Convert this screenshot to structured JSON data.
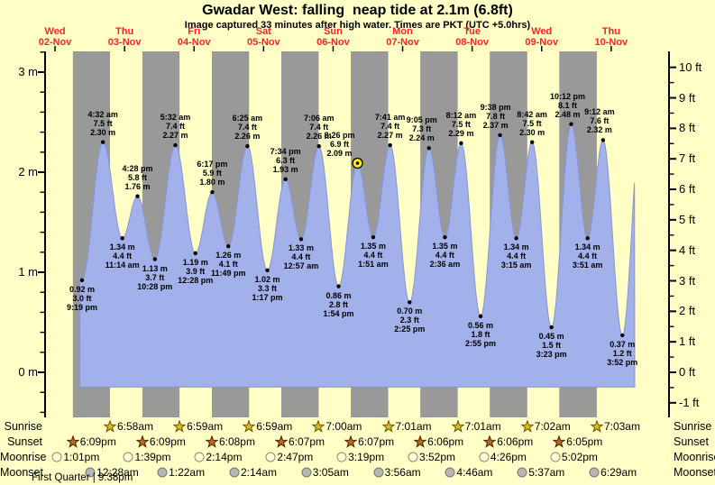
{
  "title": "Gwadar West: falling  neap tide at 2.1m (6.8ft)",
  "subtitle": "Image captured 33 minutes after high water. Times are PKT (UTC +5.0hrs)",
  "colors": {
    "background_day": "#ffffc6",
    "night_band": "#999999",
    "water_fill": "#a2b1ea",
    "water_edge": "#8794d8",
    "date_red": "#ff2222",
    "current_marker": "#ffe81e",
    "sunrise_star": "#d9bc2a",
    "sunrise_star_edge": "#6b5a00",
    "sunset_star": "#bc6a1e",
    "sunset_star_edge": "#4a2a00",
    "moonrise_fill": "#ffffd8",
    "moonrise_edge": "#8a8a6a",
    "moonset_fill": "#b6b6b6",
    "moonset_edge": "#777777"
  },
  "chart_data": {
    "type": "area",
    "title": "Gwadar West: falling  neap tide at 2.1m (6.8ft)",
    "subtitle": "Image captured 33 minutes after high water. Times are PKT (UTC +5.0hrs)",
    "y_axis_left_labels": [
      "3 m",
      "2 m",
      "1 m",
      "0 m"
    ],
    "y_axis_right_labels": [
      "10 ft",
      "9 ft",
      "8 ft",
      "7 ft",
      "6 ft",
      "5 ft",
      "4 ft",
      "3 ft",
      "2 ft",
      "1 ft",
      "0 ft",
      "-1 ft"
    ],
    "y_axis_left_unit": "m",
    "y_axis_right_unit": "ft",
    "ylim_m": [
      -0.46,
      3.2
    ],
    "grid": "day-night-bands",
    "days": [
      {
        "weekday": "Wed",
        "date": "02-Nov"
      },
      {
        "weekday": "Thu",
        "date": "03-Nov"
      },
      {
        "weekday": "Fri",
        "date": "04-Nov"
      },
      {
        "weekday": "Sat",
        "date": "05-Nov"
      },
      {
        "weekday": "Sun",
        "date": "06-Nov"
      },
      {
        "weekday": "Mon",
        "date": "07-Nov"
      },
      {
        "weekday": "Tue",
        "date": "08-Nov"
      },
      {
        "weekday": "Wed",
        "date": "09-Nov"
      },
      {
        "weekday": "Thu",
        "date": "10-Nov"
      }
    ],
    "tide_events": [
      {
        "day": 0,
        "time": "9:19 pm",
        "height_m": "0.92",
        "height_ft": "3.0",
        "type": "low"
      },
      {
        "day": 1,
        "time": "4:32 am",
        "height_m": "2.30",
        "height_ft": "7.5",
        "type": "high"
      },
      {
        "day": 1,
        "time": "11:14 am",
        "height_m": "1.34",
        "height_ft": "4.4",
        "type": "low"
      },
      {
        "day": 1,
        "time": "4:28 pm",
        "height_m": "1.76",
        "height_ft": "5.8",
        "type": "high"
      },
      {
        "day": 1,
        "time": "10:28 pm",
        "height_m": "1.13",
        "height_ft": "3.7",
        "type": "low"
      },
      {
        "day": 2,
        "time": "5:32 am",
        "height_m": "2.27",
        "height_ft": "7.4",
        "type": "high"
      },
      {
        "day": 2,
        "time": "12:28 pm",
        "height_m": "1.19",
        "height_ft": "3.9",
        "type": "low"
      },
      {
        "day": 2,
        "time": "6:17 pm",
        "height_m": "1.80",
        "height_ft": "5.9",
        "type": "high"
      },
      {
        "day": 2,
        "time": "11:49 pm",
        "height_m": "1.26",
        "height_ft": "4.1",
        "type": "low"
      },
      {
        "day": 3,
        "time": "6:25 am",
        "height_m": "2.26",
        "height_ft": "7.4",
        "type": "high"
      },
      {
        "day": 3,
        "time": "1:17 pm",
        "height_m": "1.02",
        "height_ft": "3.3",
        "type": "low"
      },
      {
        "day": 3,
        "time": "7:34 pm",
        "height_m": "1.93",
        "height_ft": "6.3",
        "type": "high"
      },
      {
        "day": 4,
        "time": "12:57 am",
        "height_m": "1.33",
        "height_ft": "4.4",
        "type": "low"
      },
      {
        "day": 4,
        "time": "7:06 am",
        "height_m": "2.26",
        "height_ft": "7.4",
        "type": "high"
      },
      {
        "day": 4,
        "time": "1:54 pm",
        "height_m": "0.86",
        "height_ft": "2.8",
        "type": "low"
      },
      {
        "day": 4,
        "time": "8:26 pm",
        "height_m": "2.09",
        "height_ft": "6.9",
        "type": "high",
        "current": true,
        "label_dx": -20
      },
      {
        "day": 5,
        "time": "1:51 am",
        "height_m": "1.35",
        "height_ft": "4.4",
        "type": "low"
      },
      {
        "day": 5,
        "time": "7:41 am",
        "height_m": "2.27",
        "height_ft": "7.4",
        "type": "high"
      },
      {
        "day": 5,
        "time": "2:25 pm",
        "height_m": "0.70",
        "height_ft": "2.3",
        "type": "low"
      },
      {
        "day": 5,
        "time": "9:05 pm",
        "height_m": "2.24",
        "height_ft": "7.3",
        "type": "high",
        "label_dx": -8
      },
      {
        "day": 6,
        "time": "2:36 am",
        "height_m": "1.35",
        "height_ft": "4.4",
        "type": "low"
      },
      {
        "day": 6,
        "time": "8:12 am",
        "height_m": "2.29",
        "height_ft": "7.5",
        "type": "high"
      },
      {
        "day": 6,
        "time": "2:55 pm",
        "height_m": "0.56",
        "height_ft": "1.8",
        "type": "low"
      },
      {
        "day": 6,
        "time": "9:38 pm",
        "height_m": "2.37",
        "height_ft": "7.8",
        "type": "high",
        "label_dx": -5
      },
      {
        "day": 7,
        "time": "3:15 am",
        "height_m": "1.34",
        "height_ft": "4.4",
        "type": "low"
      },
      {
        "day": 7,
        "time": "8:42 am",
        "height_m": "2.30",
        "height_ft": "7.5",
        "type": "high"
      },
      {
        "day": 7,
        "time": "3:23 pm",
        "height_m": "0.45",
        "height_ft": "1.5",
        "type": "low"
      },
      {
        "day": 7,
        "time": "10:12 pm",
        "height_m": "2.48",
        "height_ft": "8.1",
        "type": "high",
        "label_dx": -4
      },
      {
        "day": 8,
        "time": "3:51 am",
        "height_m": "1.34",
        "height_ft": "4.4",
        "type": "low"
      },
      {
        "day": 8,
        "time": "9:12 am",
        "height_m": "2.32",
        "height_ft": "7.6",
        "type": "high",
        "label_dx": -4
      },
      {
        "day": 8,
        "time": "3:52 pm",
        "height_m": "0.37",
        "height_ft": "1.2",
        "type": "low"
      }
    ]
  },
  "astro": {
    "rows": [
      {
        "label": "Sunrise",
        "icon": "sunrise-star",
        "entries": [
          {
            "day": 1,
            "time": "6:58am"
          },
          {
            "day": 2,
            "time": "6:59am"
          },
          {
            "day": 3,
            "time": "6:59am"
          },
          {
            "day": 4,
            "time": "7:00am"
          },
          {
            "day": 5,
            "time": "7:01am"
          },
          {
            "day": 6,
            "time": "7:01am"
          },
          {
            "day": 7,
            "time": "7:02am"
          },
          {
            "day": 8,
            "time": "7:03am"
          }
        ]
      },
      {
        "label": "Sunset",
        "icon": "sunset-star",
        "entries": [
          {
            "day": 0,
            "time": "6:09pm"
          },
          {
            "day": 1,
            "time": "6:09pm"
          },
          {
            "day": 2,
            "time": "6:08pm"
          },
          {
            "day": 3,
            "time": "6:07pm"
          },
          {
            "day": 4,
            "time": "6:07pm"
          },
          {
            "day": 5,
            "time": "6:06pm"
          },
          {
            "day": 6,
            "time": "6:06pm"
          },
          {
            "day": 7,
            "time": "6:05pm"
          }
        ]
      },
      {
        "label": "Moonrise",
        "icon": "moonrise-circle",
        "entries": [
          {
            "day": 0,
            "time": "1:01pm"
          },
          {
            "day": 1,
            "time": "1:39pm"
          },
          {
            "day": 2,
            "time": "2:14pm"
          },
          {
            "day": 3,
            "time": "2:47pm"
          },
          {
            "day": 4,
            "time": "3:19pm"
          },
          {
            "day": 5,
            "time": "3:52pm"
          },
          {
            "day": 6,
            "time": "4:26pm"
          },
          {
            "day": 7,
            "time": "5:02pm"
          }
        ]
      },
      {
        "label": "Moonset",
        "icon": "moonset-circle",
        "entries": [
          {
            "day": 1,
            "time": "12:28am"
          },
          {
            "day": 2,
            "time": "1:22am"
          },
          {
            "day": 3,
            "time": "2:14am"
          },
          {
            "day": 4,
            "time": "3:05am"
          },
          {
            "day": 5,
            "time": "3:56am"
          },
          {
            "day": 6,
            "time": "4:46am"
          },
          {
            "day": 7,
            "time": "5:37am"
          },
          {
            "day": 8,
            "time": "6:29am"
          }
        ]
      }
    ],
    "moon_phase": "First Quarter | 9:38pm"
  }
}
